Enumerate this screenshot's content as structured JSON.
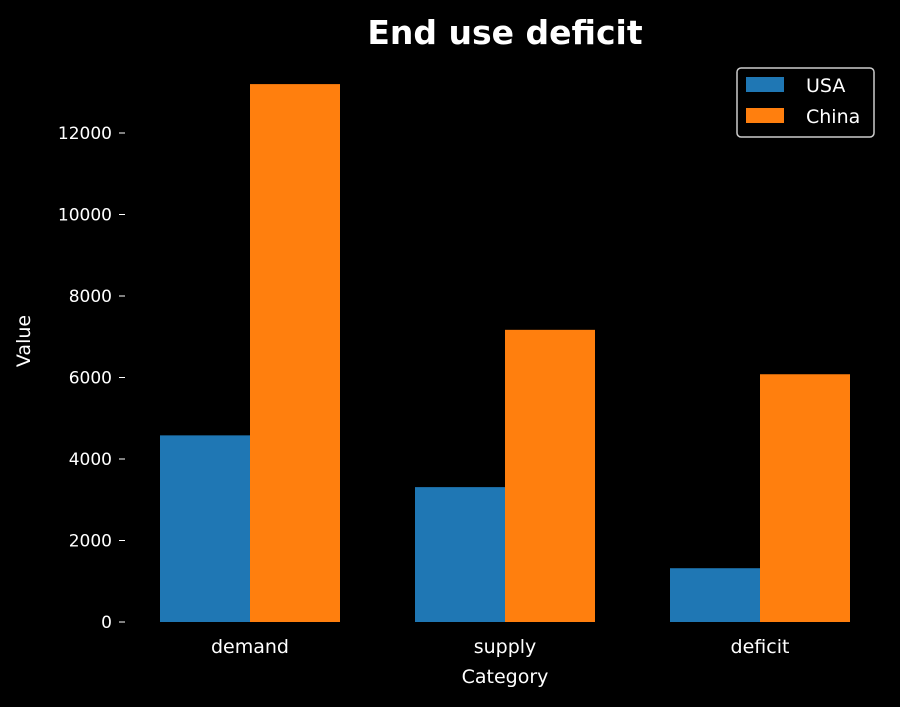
{
  "chart_data": {
    "type": "bar",
    "title": "End use deficit",
    "xlabel": "Category",
    "ylabel": "Value",
    "categories": [
      "demand",
      "supply",
      "deficit"
    ],
    "series": [
      {
        "name": "USA",
        "color": "#1f77b4",
        "values": [
          4580,
          3310,
          1320
        ]
      },
      {
        "name": "China",
        "color": "#ff7f0e",
        "values": [
          13200,
          7170,
          6080
        ]
      }
    ],
    "yticks": [
      0,
      2000,
      4000,
      6000,
      8000,
      10000,
      12000
    ],
    "ylim": [
      0,
      13860
    ],
    "grid": false,
    "legend": "top-right",
    "background": "#000000"
  }
}
